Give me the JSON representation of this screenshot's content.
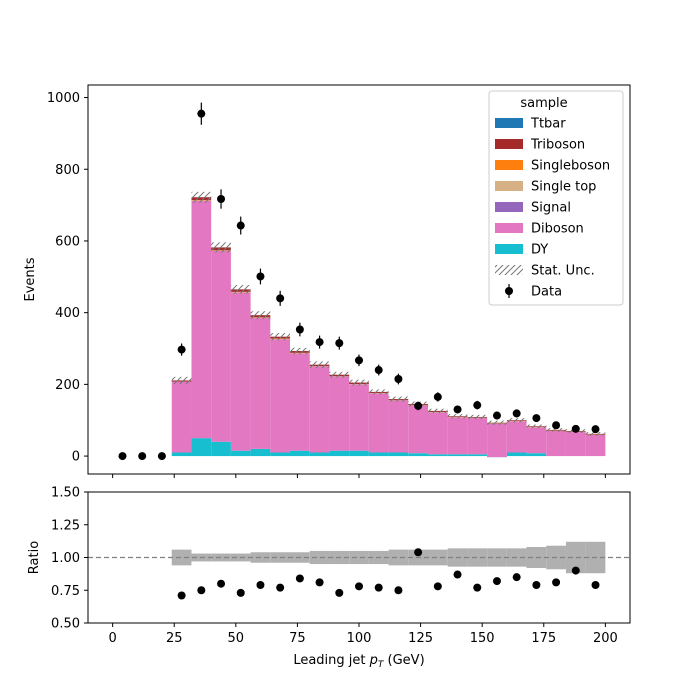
{
  "chart_data": [
    {
      "type": "bar",
      "stacked": true,
      "xlabel": "",
      "ylabel": "Events",
      "xlim": [
        -10,
        210
      ],
      "ylim": [
        -50,
        1035
      ],
      "xticks": [
        0,
        25,
        50,
        75,
        100,
        125,
        150,
        175,
        200
      ],
      "yticks": [
        0,
        200,
        400,
        600,
        800,
        1000
      ],
      "bin_edges": [
        0,
        8,
        16,
        24,
        32,
        40,
        48,
        56,
        64,
        72,
        80,
        88,
        96,
        104,
        112,
        120,
        128,
        136,
        144,
        152,
        160,
        168,
        176,
        184,
        192,
        200
      ],
      "legend": {
        "title": "sample",
        "placement": "top-right",
        "entries": [
          "Ttbar",
          "Triboson",
          "Singleboson",
          "Single top",
          "Signal",
          "Diboson",
          "DY",
          "Stat. Unc.",
          "Data"
        ]
      },
      "series": [
        {
          "name": "DY",
          "color": "#17becf",
          "values": [
            0,
            0,
            0,
            10,
            50,
            40,
            15,
            20,
            10,
            15,
            10,
            15,
            15,
            10,
            10,
            8,
            5,
            5,
            5,
            -3,
            10,
            8,
            0,
            0,
            0
          ]
        },
        {
          "name": "Diboson",
          "color": "#e377c2",
          "values": [
            0,
            0,
            0,
            198,
            662,
            532,
            441,
            365,
            316,
            271,
            240,
            207,
            185,
            165,
            145,
            133,
            117,
            103,
            101,
            93,
            87,
            72,
            70,
            67,
            59
          ]
        },
        {
          "name": "Signal",
          "color": "#9467bd",
          "values": [
            0,
            0,
            0,
            0,
            0,
            0,
            0,
            0,
            0,
            0,
            0,
            0,
            0,
            0,
            0,
            0,
            0,
            0,
            0,
            0,
            0,
            0,
            0,
            0,
            0
          ]
        },
        {
          "name": "Single top",
          "color": "#d5b185",
          "values": [
            0,
            0,
            0,
            0,
            1,
            1,
            1,
            1,
            1,
            1,
            1,
            1,
            1,
            1,
            1,
            1,
            1,
            1,
            1,
            1,
            1,
            1,
            1,
            1,
            1
          ]
        },
        {
          "name": "Singleboson",
          "color": "#ff7f0e",
          "values": [
            0,
            0,
            0,
            0,
            1,
            1,
            1,
            1,
            1,
            1,
            0,
            0,
            0,
            0,
            0,
            0,
            0,
            0,
            0,
            0,
            0,
            0,
            0,
            0,
            0
          ]
        },
        {
          "name": "Triboson",
          "color": "#a52a2a",
          "values": [
            0,
            0,
            0,
            3,
            8,
            8,
            7,
            6,
            5,
            5,
            4,
            4,
            4,
            3,
            3,
            3,
            3,
            2,
            2,
            2,
            2,
            2,
            2,
            2,
            2
          ]
        },
        {
          "name": "Ttbar",
          "color": "#1f77b4",
          "values": [
            0,
            0,
            0,
            0,
            0,
            0,
            0,
            0,
            0,
            0,
            0,
            0,
            0,
            0,
            0,
            0,
            0,
            0,
            0,
            0,
            0,
            0,
            0,
            0,
            0
          ]
        }
      ],
      "stat_unc": [
        0,
        0,
        0,
        10,
        15,
        14,
        12,
        11,
        10,
        9,
        9,
        8,
        8,
        7,
        7,
        7,
        6,
        6,
        6,
        6,
        6,
        5,
        5,
        5,
        5
      ],
      "data": {
        "name": "Data",
        "x": [
          4,
          12,
          20,
          28,
          36,
          44,
          52,
          60,
          68,
          76,
          84,
          92,
          100,
          108,
          116,
          124,
          132,
          140,
          148,
          156,
          164,
          172,
          180,
          188,
          196
        ],
        "y": [
          0,
          0,
          0,
          297,
          955,
          717,
          643,
          501,
          440,
          353,
          318,
          315,
          267,
          240,
          215,
          140,
          165,
          130,
          142,
          113,
          119,
          106,
          86,
          76,
          75
        ],
        "err": [
          0,
          0,
          0,
          17,
          31,
          27,
          25,
          22,
          21,
          19,
          18,
          18,
          16,
          15,
          15,
          12,
          13,
          11,
          12,
          11,
          11,
          10,
          9,
          9,
          9
        ]
      }
    },
    {
      "type": "scatter",
      "xlabel": "Leading jet  $p_T$ (GeV)",
      "ylabel": "Ratio",
      "xlim": [
        -10,
        210
      ],
      "ylim": [
        0.5,
        1.5
      ],
      "xticks": [
        0,
        25,
        50,
        75,
        100,
        125,
        150,
        175,
        200
      ],
      "yticks": [
        "0.50",
        "0.75",
        "1.00",
        "1.25",
        "1.50"
      ],
      "reference_line": 1.0,
      "x": [
        28,
        36,
        44,
        52,
        60,
        68,
        76,
        84,
        92,
        100,
        108,
        116,
        124,
        132,
        140,
        148,
        156,
        164,
        172,
        180,
        188,
        196
      ],
      "values": [
        0.71,
        0.75,
        0.8,
        0.73,
        0.79,
        0.77,
        0.84,
        0.81,
        0.73,
        0.78,
        0.77,
        0.75,
        1.04,
        0.78,
        0.87,
        0.77,
        0.82,
        0.85,
        0.79,
        0.81,
        0.9,
        0.79
      ],
      "unc_band": [
        0.06,
        0.03,
        0.03,
        0.03,
        0.04,
        0.04,
        0.04,
        0.05,
        0.05,
        0.05,
        0.05,
        0.06,
        0.06,
        0.06,
        0.07,
        0.07,
        0.07,
        0.07,
        0.08,
        0.09,
        0.12,
        0.12
      ]
    }
  ]
}
